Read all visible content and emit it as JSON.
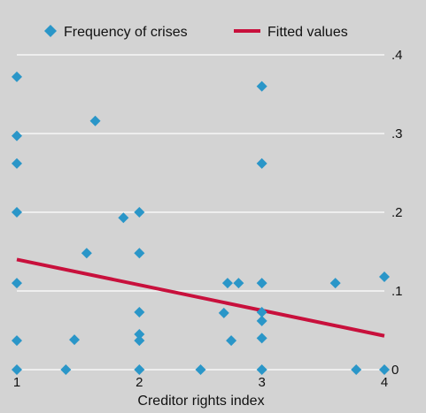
{
  "chart_data": {
    "type": "scatter",
    "xlabel": "Creditor rights index",
    "ylabel": "",
    "xlim": [
      1,
      4
    ],
    "ylim": [
      0,
      0.4
    ],
    "x_ticks": [
      1,
      2,
      3,
      4
    ],
    "x_tick_labels": [
      "1",
      "2",
      "3",
      "4"
    ],
    "y_ticks": [
      0,
      0.1,
      0.2,
      0.3,
      0.4
    ],
    "y_tick_labels": [
      "0",
      ".1",
      ".2",
      ".3",
      ".4"
    ],
    "y_axis_position": "right",
    "grid": "horizontal",
    "legend_position": "top",
    "legend": [
      "Frequency of crises",
      "Fitted values"
    ],
    "colors": {
      "background": "#d3d3d3",
      "grid": "#ffffff",
      "points": "#2a96c8",
      "fit": "#c8103c"
    },
    "series": [
      {
        "name": "Frequency of crises",
        "type": "scatter",
        "marker": "diamond",
        "points": [
          [
            1.0,
            0.372
          ],
          [
            1.0,
            0.297
          ],
          [
            1.0,
            0.262
          ],
          [
            1.0,
            0.2
          ],
          [
            1.0,
            0.11
          ],
          [
            1.0,
            0.037
          ],
          [
            1.0,
            0.0
          ],
          [
            1.4,
            0.0
          ],
          [
            1.47,
            0.038
          ],
          [
            1.57,
            0.148
          ],
          [
            1.64,
            0.316
          ],
          [
            1.87,
            0.193
          ],
          [
            2.0,
            0.2
          ],
          [
            2.0,
            0.148
          ],
          [
            2.0,
            0.073
          ],
          [
            2.0,
            0.045
          ],
          [
            2.0,
            0.037
          ],
          [
            2.0,
            0.0
          ],
          [
            2.5,
            0.0
          ],
          [
            2.69,
            0.072
          ],
          [
            2.72,
            0.11
          ],
          [
            2.75,
            0.037
          ],
          [
            2.81,
            0.11
          ],
          [
            3.0,
            0.36
          ],
          [
            3.0,
            0.262
          ],
          [
            3.0,
            0.11
          ],
          [
            3.0,
            0.073
          ],
          [
            3.0,
            0.062
          ],
          [
            3.0,
            0.04
          ],
          [
            3.0,
            0.0
          ],
          [
            3.6,
            0.11
          ],
          [
            3.77,
            0.0
          ],
          [
            4.0,
            0.118
          ],
          [
            4.0,
            0.0
          ]
        ]
      },
      {
        "name": "Fitted values",
        "type": "line",
        "points": [
          [
            1.0,
            0.14
          ],
          [
            4.0,
            0.043
          ]
        ]
      }
    ]
  }
}
